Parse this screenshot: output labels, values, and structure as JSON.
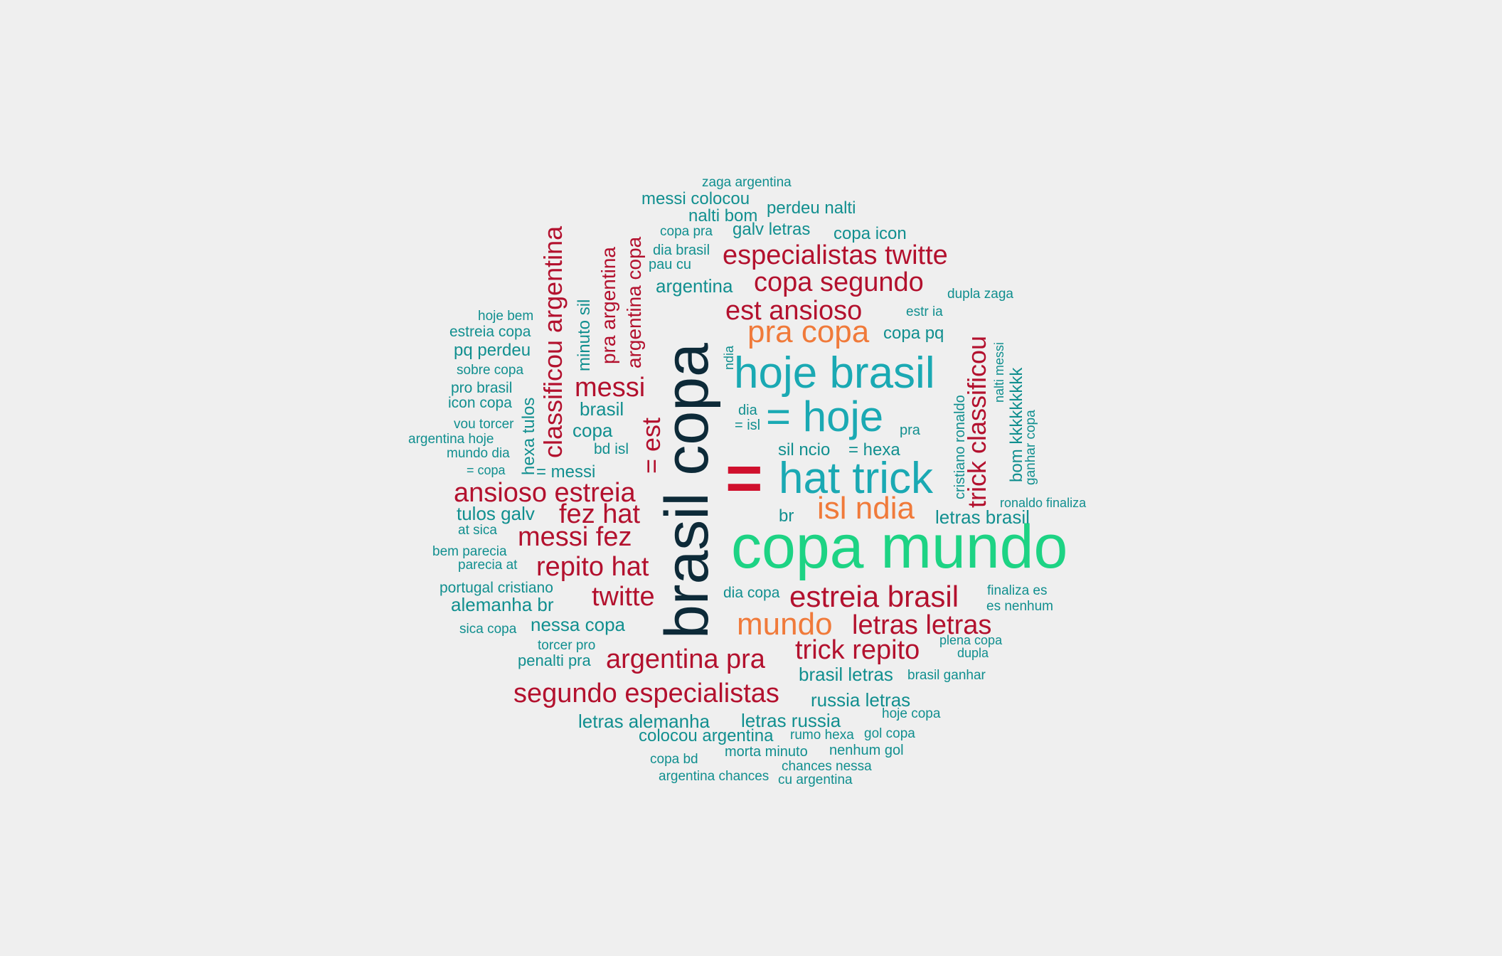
{
  "palette": {
    "largest": "#0d2a38",
    "large": "#1dd384",
    "upper_mid": "#1aa9b3",
    "mid": "#f07a3a",
    "lower_mid": "#b3112e",
    "small": "#118f8f",
    "equals": "#d0102d"
  },
  "words": [
    {
      "text": "brasil copa",
      "tier": "largest"
    },
    {
      "text": "copa mundo",
      "tier": "large"
    },
    {
      "text": "=",
      "tier": "equals"
    },
    {
      "text": "hat trick",
      "tier": "upper_mid"
    },
    {
      "text": "hoje brasil",
      "tier": "upper_mid"
    },
    {
      "text": "= hoje",
      "tier": "upper_mid"
    },
    {
      "text": "pra copa",
      "tier": "mid"
    },
    {
      "text": "isl ndia",
      "tier": "mid"
    },
    {
      "text": "mundo",
      "tier": "mid"
    },
    {
      "text": "especialistas twitte",
      "tier": "lower_mid"
    },
    {
      "text": "copa segundo",
      "tier": "lower_mid"
    },
    {
      "text": "est ansioso",
      "tier": "lower_mid"
    },
    {
      "text": "messi",
      "tier": "lower_mid"
    },
    {
      "text": "ansioso estreia",
      "tier": "lower_mid"
    },
    {
      "text": "fez hat",
      "tier": "lower_mid"
    },
    {
      "text": "messi fez",
      "tier": "lower_mid"
    },
    {
      "text": "repito hat",
      "tier": "lower_mid"
    },
    {
      "text": "twitte",
      "tier": "lower_mid"
    },
    {
      "text": "estreia brasil",
      "tier": "lower_mid"
    },
    {
      "text": "letras letras",
      "tier": "lower_mid"
    },
    {
      "text": "trick repito",
      "tier": "lower_mid"
    },
    {
      "text": "argentina pra",
      "tier": "lower_mid"
    },
    {
      "text": "segundo especialistas",
      "tier": "lower_mid"
    },
    {
      "text": "classificou argentina",
      "tier": "lower_mid"
    },
    {
      "text": "pra argentina",
      "tier": "lower_mid"
    },
    {
      "text": "argentina copa",
      "tier": "lower_mid"
    },
    {
      "text": "= est",
      "tier": "lower_mid"
    },
    {
      "text": "trick classificou",
      "tier": "lower_mid"
    },
    {
      "text": "zaga argentina",
      "tier": "small"
    },
    {
      "text": "messi colocou",
      "tier": "small"
    },
    {
      "text": "nalti bom",
      "tier": "small"
    },
    {
      "text": "perdeu nalti",
      "tier": "small"
    },
    {
      "text": "copa pra",
      "tier": "small"
    },
    {
      "text": "galv letras",
      "tier": "small"
    },
    {
      "text": "copa icon",
      "tier": "small"
    },
    {
      "text": "dia brasil",
      "tier": "small"
    },
    {
      "text": "pau cu",
      "tier": "small"
    },
    {
      "text": "argentina",
      "tier": "small"
    },
    {
      "text": "dupla zaga",
      "tier": "small"
    },
    {
      "text": "hoje bem",
      "tier": "small"
    },
    {
      "text": "estreia copa",
      "tier": "small"
    },
    {
      "text": "estr ia",
      "tier": "small"
    },
    {
      "text": "copa pq",
      "tier": "small"
    },
    {
      "text": "pq perdeu",
      "tier": "small"
    },
    {
      "text": "sobre copa",
      "tier": "small"
    },
    {
      "text": "pro brasil",
      "tier": "small"
    },
    {
      "text": "icon copa",
      "tier": "small"
    },
    {
      "text": "vou torcer",
      "tier": "small"
    },
    {
      "text": "argentina hoje",
      "tier": "small"
    },
    {
      "text": "mundo dia",
      "tier": "small"
    },
    {
      "text": "= copa",
      "tier": "small"
    },
    {
      "text": "= messi",
      "tier": "small"
    },
    {
      "text": "brasil",
      "tier": "small"
    },
    {
      "text": "copa",
      "tier": "small"
    },
    {
      "text": "bd isl",
      "tier": "small"
    },
    {
      "text": "dia",
      "tier": "small"
    },
    {
      "text": "= isl",
      "tier": "small"
    },
    {
      "text": "pra",
      "tier": "small"
    },
    {
      "text": "sil ncio",
      "tier": "small"
    },
    {
      "text": "= hexa",
      "tier": "small"
    },
    {
      "text": "br",
      "tier": "small"
    },
    {
      "text": "tulos galv",
      "tier": "small"
    },
    {
      "text": "at sica",
      "tier": "small"
    },
    {
      "text": "bem parecia",
      "tier": "small"
    },
    {
      "text": "parecia at",
      "tier": "small"
    },
    {
      "text": "portugal cristiano",
      "tier": "small"
    },
    {
      "text": "alemanha br",
      "tier": "small"
    },
    {
      "text": "sica copa",
      "tier": "small"
    },
    {
      "text": "nessa copa",
      "tier": "small"
    },
    {
      "text": "torcer pro",
      "tier": "small"
    },
    {
      "text": "penalti pra",
      "tier": "small"
    },
    {
      "text": "dia copa",
      "tier": "small"
    },
    {
      "text": "ronaldo finaliza",
      "tier": "small"
    },
    {
      "text": "letras brasil",
      "tier": "small"
    },
    {
      "text": "finaliza es",
      "tier": "small"
    },
    {
      "text": "es nenhum",
      "tier": "small"
    },
    {
      "text": "plena copa",
      "tier": "small"
    },
    {
      "text": "dupla",
      "tier": "small"
    },
    {
      "text": "brasil letras",
      "tier": "small"
    },
    {
      "text": "brasil ganhar",
      "tier": "small"
    },
    {
      "text": "russia letras",
      "tier": "small"
    },
    {
      "text": "hoje copa",
      "tier": "small"
    },
    {
      "text": "letras alemanha",
      "tier": "small"
    },
    {
      "text": "letras russia",
      "tier": "small"
    },
    {
      "text": "colocou argentina",
      "tier": "small"
    },
    {
      "text": "rumo hexa",
      "tier": "small"
    },
    {
      "text": "gol copa",
      "tier": "small"
    },
    {
      "text": "morta minuto",
      "tier": "small"
    },
    {
      "text": "nenhum gol",
      "tier": "small"
    },
    {
      "text": "copa bd",
      "tier": "small"
    },
    {
      "text": "chances nessa",
      "tier": "small"
    },
    {
      "text": "argentina chances",
      "tier": "small"
    },
    {
      "text": "cu argentina",
      "tier": "small"
    },
    {
      "text": "minuto sil",
      "tier": "small"
    },
    {
      "text": "hexa tulos",
      "tier": "small"
    },
    {
      "text": "ndia",
      "tier": "small"
    },
    {
      "text": "cristiano ronaldo",
      "tier": "small"
    },
    {
      "text": "nalti messi",
      "tier": "small"
    },
    {
      "text": "bom kkkkkkkkk",
      "tier": "small"
    },
    {
      "text": "ganhar copa",
      "tier": "small"
    }
  ]
}
